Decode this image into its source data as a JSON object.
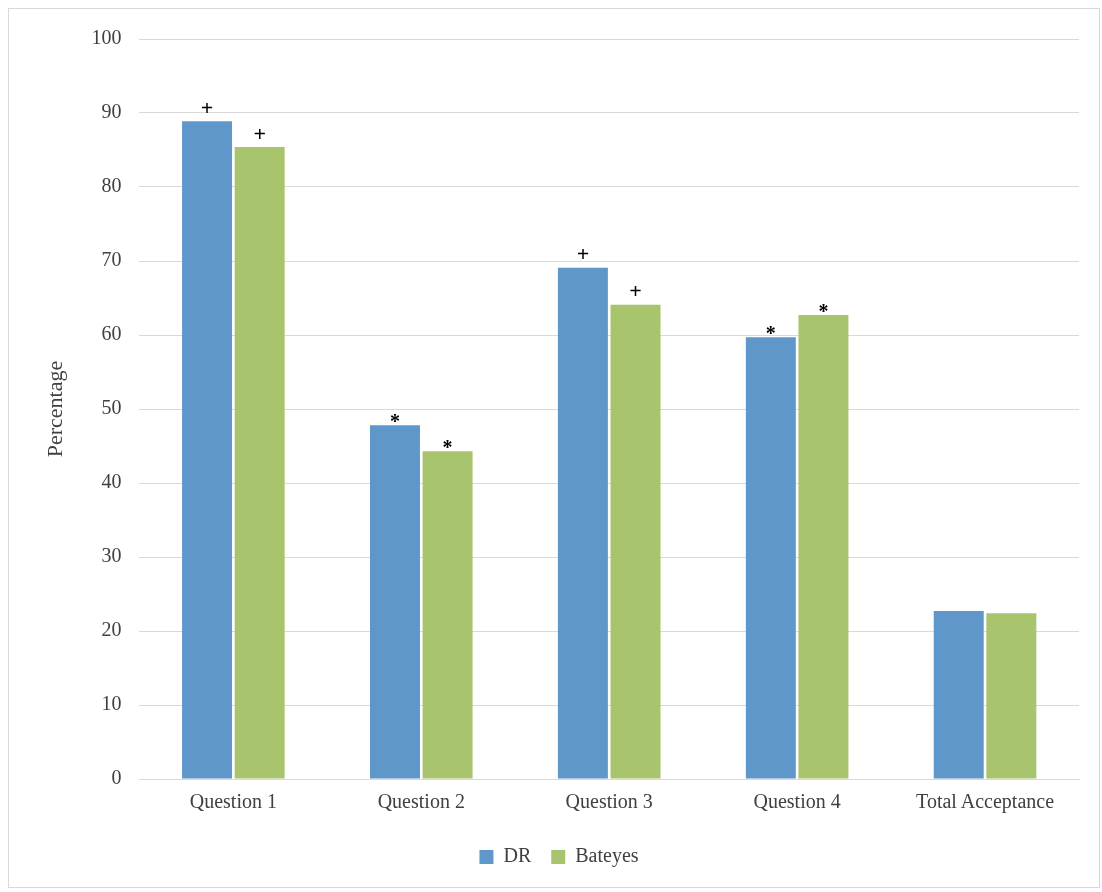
{
  "chart_data": {
    "type": "bar",
    "ylabel": "Percentage",
    "categories": [
      "Question 1",
      "Question 2",
      "Question 3",
      "Question 4",
      "Total Acceptance"
    ],
    "series": [
      {
        "name": "DR",
        "color": "#6097ca",
        "values": [
          88.9,
          47.8,
          69.1,
          59.7,
          22.7
        ]
      },
      {
        "name": "Bateyes",
        "color": "#a8c46c",
        "values": [
          85.4,
          44.3,
          64.1,
          62.7,
          22.4
        ]
      }
    ],
    "ylim": [
      0,
      100
    ],
    "yticks": [
      0,
      10,
      20,
      30,
      40,
      50,
      60,
      70,
      80,
      90,
      100
    ],
    "grid": "y",
    "legend": "bottom",
    "annotations": [
      {
        "text": "+",
        "x": "Question 1",
        "y": 88.9
      },
      {
        "text": "+",
        "x": "Question 1",
        "y": 85.4
      },
      {
        "text": "*",
        "x": "Question 2",
        "y": 47.8
      },
      {
        "text": "*",
        "x": "Question 2",
        "y": 44.3
      },
      {
        "text": "+",
        "x": "Question 3",
        "y": 69.1
      },
      {
        "text": "+",
        "x": "Question 3",
        "y": 64.1
      },
      {
        "text": "*",
        "x": "Question 4",
        "y": 59.7
      },
      {
        "text": "*",
        "x": "Question 4",
        "y": 62.7
      }
    ]
  }
}
